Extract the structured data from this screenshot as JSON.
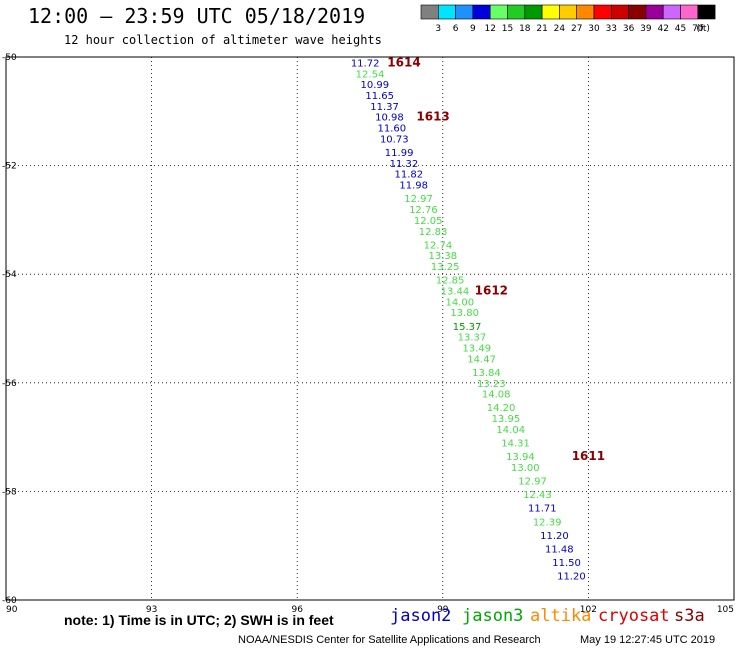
{
  "header": {
    "title": "12:00 – 23:59 UTC 05/18/2019",
    "subtitle": "12 hour collection of altimeter wave heights"
  },
  "colorbar": {
    "unit": "(ft)",
    "items": [
      {
        "color": "#808080",
        "label": "3"
      },
      {
        "color": "#00e5ff",
        "label": "6"
      },
      {
        "color": "#1e90ff",
        "label": "9"
      },
      {
        "color": "#0000dd",
        "label": "12"
      },
      {
        "color": "#66ff66",
        "label": "15"
      },
      {
        "color": "#22cc22",
        "label": "18"
      },
      {
        "color": "#009900",
        "label": "21"
      },
      {
        "color": "#ffff00",
        "label": "24"
      },
      {
        "color": "#ffcc00",
        "label": "27"
      },
      {
        "color": "#ff8800",
        "label": "30"
      },
      {
        "color": "#ff0000",
        "label": "33"
      },
      {
        "color": "#cc0000",
        "label": "36"
      },
      {
        "color": "#880000",
        "label": "39"
      },
      {
        "color": "#990099",
        "label": "42"
      },
      {
        "color": "#cc66ff",
        "label": "45"
      },
      {
        "color": "#ff66cc",
        "label": "70"
      },
      {
        "color": "#000000",
        "label": ""
      }
    ]
  },
  "footer": {
    "note": "note: 1) Time is in UTC; 2) SWH is in feet",
    "satellites": [
      {
        "name": "jason2",
        "color": "#0000cc"
      },
      {
        "name": "jason3",
        "color": "#00aa00"
      },
      {
        "name": "altika",
        "color": "#ff8800"
      },
      {
        "name": "cryosat",
        "color": "#dd0000"
      },
      {
        "name": "s3a",
        "color": "#880000"
      }
    ],
    "credit": "NOAA/NESDIS Center for Satellite Applications and Research",
    "timestamp": "May 19 12:27:45 UTC 2019"
  },
  "chart_data": {
    "type": "scatter",
    "title": "12:00 – 23:59 UTC 05/18/2019",
    "subtitle": "12 hour collection of altimeter wave heights",
    "xlim": [
      90,
      105
    ],
    "ylim": [
      -60,
      -50
    ],
    "xticks": [
      "90",
      "93",
      "96",
      "99",
      "102",
      "105"
    ],
    "yticks": [
      "-50",
      "-52",
      "-54",
      "-56",
      "-58",
      "-60"
    ],
    "grid": true,
    "colors": {
      "blue": "#0000cc",
      "light": "#44dd44",
      "dark": "#009900",
      "time": "#880000"
    },
    "points": [
      {
        "lon": 97.4,
        "lat": -50.1,
        "v": "11.72",
        "c": "blue"
      },
      {
        "lon": 97.5,
        "lat": -50.3,
        "v": "12.54",
        "c": "light"
      },
      {
        "lon": 97.6,
        "lat": -50.5,
        "v": "10.99",
        "c": "blue"
      },
      {
        "lon": 97.7,
        "lat": -50.7,
        "v": "11.65",
        "c": "blue"
      },
      {
        "lon": 97.8,
        "lat": -50.9,
        "v": "11.37",
        "c": "blue"
      },
      {
        "lon": 97.9,
        "lat": -51.1,
        "v": "10.98",
        "c": "blue"
      },
      {
        "lon": 97.95,
        "lat": -51.3,
        "v": "11.60",
        "c": "blue"
      },
      {
        "lon": 98.0,
        "lat": -51.5,
        "v": "10.73",
        "c": "blue"
      },
      {
        "lon": 98.1,
        "lat": -51.75,
        "v": "11.99",
        "c": "blue"
      },
      {
        "lon": 98.2,
        "lat": -51.95,
        "v": "11.32",
        "c": "blue"
      },
      {
        "lon": 98.3,
        "lat": -52.15,
        "v": "11.82",
        "c": "blue"
      },
      {
        "lon": 98.4,
        "lat": -52.35,
        "v": "11.98",
        "c": "blue"
      },
      {
        "lon": 98.5,
        "lat": -52.6,
        "v": "12.97",
        "c": "light"
      },
      {
        "lon": 98.6,
        "lat": -52.8,
        "v": "12.76",
        "c": "light"
      },
      {
        "lon": 98.7,
        "lat": -53.0,
        "v": "12.05",
        "c": "light"
      },
      {
        "lon": 98.8,
        "lat": -53.2,
        "v": "12.83",
        "c": "light"
      },
      {
        "lon": 98.9,
        "lat": -53.45,
        "v": "12.74",
        "c": "light"
      },
      {
        "lon": 99.0,
        "lat": -53.65,
        "v": "13.38",
        "c": "light"
      },
      {
        "lon": 99.05,
        "lat": -53.85,
        "v": "13.25",
        "c": "light"
      },
      {
        "lon": 99.15,
        "lat": -54.1,
        "v": "12.85",
        "c": "light"
      },
      {
        "lon": 99.25,
        "lat": -54.3,
        "v": "13.44",
        "c": "light"
      },
      {
        "lon": 99.35,
        "lat": -54.5,
        "v": "14.00",
        "c": "light"
      },
      {
        "lon": 99.45,
        "lat": -54.7,
        "v": "13.80",
        "c": "light"
      },
      {
        "lon": 99.5,
        "lat": -54.95,
        "v": "15.37",
        "c": "dark"
      },
      {
        "lon": 99.6,
        "lat": -55.15,
        "v": "13.37",
        "c": "light"
      },
      {
        "lon": 99.7,
        "lat": -55.35,
        "v": "13.49",
        "c": "light"
      },
      {
        "lon": 99.8,
        "lat": -55.55,
        "v": "14.47",
        "c": "light"
      },
      {
        "lon": 99.9,
        "lat": -55.8,
        "v": "13.84",
        "c": "light"
      },
      {
        "lon": 100.0,
        "lat": -56.0,
        "v": "13.23",
        "c": "light"
      },
      {
        "lon": 100.1,
        "lat": -56.2,
        "v": "14.08",
        "c": "light"
      },
      {
        "lon": 100.2,
        "lat": -56.45,
        "v": "14.20",
        "c": "light"
      },
      {
        "lon": 100.3,
        "lat": -56.65,
        "v": "13.95",
        "c": "light"
      },
      {
        "lon": 100.4,
        "lat": -56.85,
        "v": "14.04",
        "c": "light"
      },
      {
        "lon": 100.5,
        "lat": -57.1,
        "v": "14.31",
        "c": "light"
      },
      {
        "lon": 100.6,
        "lat": -57.35,
        "v": "13.94",
        "c": "light"
      },
      {
        "lon": 100.7,
        "lat": -57.55,
        "v": "13.00",
        "c": "light"
      },
      {
        "lon": 100.85,
        "lat": -57.8,
        "v": "12.97",
        "c": "light"
      },
      {
        "lon": 100.95,
        "lat": -58.05,
        "v": "12.43",
        "c": "light"
      },
      {
        "lon": 101.05,
        "lat": -58.3,
        "v": "11.71",
        "c": "blue"
      },
      {
        "lon": 101.15,
        "lat": -58.55,
        "v": "12.39",
        "c": "light"
      },
      {
        "lon": 101.3,
        "lat": -58.8,
        "v": "11.20",
        "c": "blue"
      },
      {
        "lon": 101.4,
        "lat": -59.05,
        "v": "11.48",
        "c": "blue"
      },
      {
        "lon": 101.55,
        "lat": -59.3,
        "v": "11.50",
        "c": "blue"
      },
      {
        "lon": 101.65,
        "lat": -59.55,
        "v": "11.20",
        "c": "blue"
      }
    ],
    "time_labels": [
      {
        "lon": 98.2,
        "lat": -50.1,
        "text": "1614"
      },
      {
        "lon": 98.8,
        "lat": -51.1,
        "text": "1613"
      },
      {
        "lon": 100.0,
        "lat": -54.3,
        "text": "1612"
      },
      {
        "lon": 102.0,
        "lat": -57.35,
        "text": "1611"
      }
    ]
  }
}
